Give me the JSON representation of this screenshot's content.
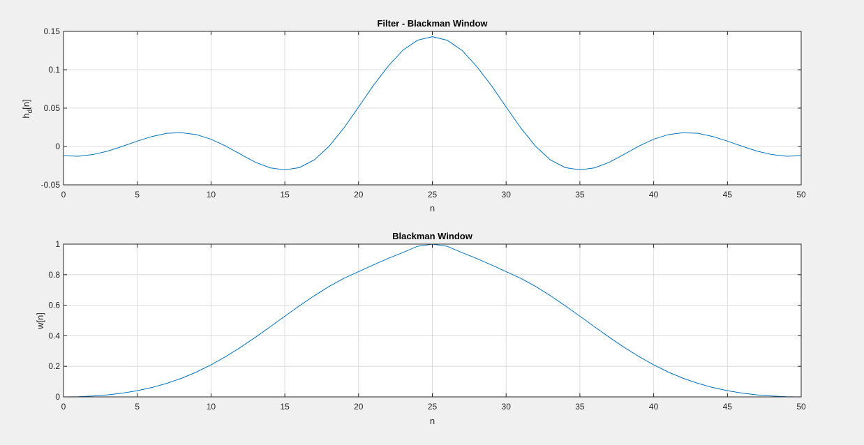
{
  "figure": {
    "background": "#f0f0f0",
    "line_color": "#0072bd",
    "grid_color": "#dcdcdc"
  },
  "chart_data": [
    {
      "type": "line",
      "title": "Filter - Blackman Window",
      "xlabel": "n",
      "ylabel_main": "h",
      "ylabel_sub": "d",
      "ylabel_suffix": "[n]",
      "xlim": [
        0,
        50
      ],
      "ylim": [
        -0.05,
        0.15
      ],
      "xticks": [
        0,
        5,
        10,
        15,
        20,
        25,
        30,
        35,
        40,
        45,
        50
      ],
      "yticks": [
        -0.05,
        0,
        0.05,
        0.1,
        0.15
      ],
      "ytick_labels": [
        "-0.05",
        "0",
        "0.05",
        "0.1",
        "0.15"
      ],
      "grid": true,
      "x": [
        0,
        1,
        2,
        3,
        4,
        5,
        6,
        7,
        8,
        9,
        10,
        11,
        12,
        13,
        14,
        15,
        16,
        17,
        18,
        19,
        20,
        21,
        22,
        23,
        24,
        25,
        26,
        27,
        28,
        29,
        30,
        31,
        32,
        33,
        34,
        35,
        36,
        37,
        38,
        39,
        40,
        41,
        42,
        43,
        44,
        45,
        46,
        47,
        48,
        49,
        50
      ],
      "series": [
        {
          "values": [
            -0.012,
            -0.0127,
            -0.0105,
            -0.006,
            0.0002,
            0.007,
            0.013,
            0.0172,
            0.018,
            0.0155,
            0.0095,
            0.0005,
            -0.0102,
            -0.0205,
            -0.0278,
            -0.0305,
            -0.0275,
            -0.0175,
            0.0002,
            0.024,
            0.0515,
            0.0795,
            0.1045,
            0.1255,
            0.1385,
            0.143,
            0.1385,
            0.1255,
            0.1045,
            0.0795,
            0.0515,
            0.024,
            0.0002,
            -0.0175,
            -0.0275,
            -0.0305,
            -0.0278,
            -0.0205,
            -0.0102,
            0.0005,
            0.0095,
            0.0155,
            0.018,
            0.0172,
            0.013,
            0.007,
            0.0002,
            -0.006,
            -0.0105,
            -0.0127,
            -0.012
          ]
        }
      ]
    },
    {
      "type": "line",
      "title": "Blackman Window",
      "xlabel": "n",
      "ylabel_main": "w[n]",
      "ylabel_sub": "",
      "ylabel_suffix": "",
      "xlim": [
        0,
        50
      ],
      "ylim": [
        0,
        1
      ],
      "xticks": [
        0,
        5,
        10,
        15,
        20,
        25,
        30,
        35,
        40,
        45,
        50
      ],
      "yticks": [
        0,
        0.2,
        0.4,
        0.6,
        0.8,
        1
      ],
      "ytick_labels": [
        "0",
        "0.2",
        "0.4",
        "0.6",
        "0.8",
        "1"
      ],
      "grid": true,
      "x": [
        0,
        1,
        2,
        3,
        4,
        5,
        6,
        7,
        8,
        9,
        10,
        11,
        12,
        13,
        14,
        15,
        16,
        17,
        18,
        19,
        20,
        21,
        22,
        23,
        24,
        25,
        26,
        27,
        28,
        29,
        30,
        31,
        32,
        33,
        34,
        35,
        36,
        37,
        38,
        39,
        40,
        41,
        42,
        43,
        44,
        45,
        46,
        47,
        48,
        49,
        50
      ],
      "series": [
        {
          "values": [
            0,
            0.0014,
            0.0058,
            0.0134,
            0.0248,
            0.0405,
            0.0614,
            0.0883,
            0.1217,
            0.1621,
            0.2097,
            0.264,
            0.3244,
            0.3897,
            0.4582,
            0.528,
            0.5969,
            0.6626,
            0.7228,
            0.7758,
            0.82,
            0.864,
            0.906,
            0.945,
            0.986,
            1.0,
            0.986,
            0.945,
            0.906,
            0.864,
            0.82,
            0.7758,
            0.7228,
            0.6626,
            0.5969,
            0.528,
            0.4582,
            0.3897,
            0.3244,
            0.264,
            0.2097,
            0.1621,
            0.1217,
            0.0883,
            0.0614,
            0.0405,
            0.0248,
            0.0134,
            0.0058,
            0.0014,
            0
          ]
        }
      ]
    }
  ]
}
